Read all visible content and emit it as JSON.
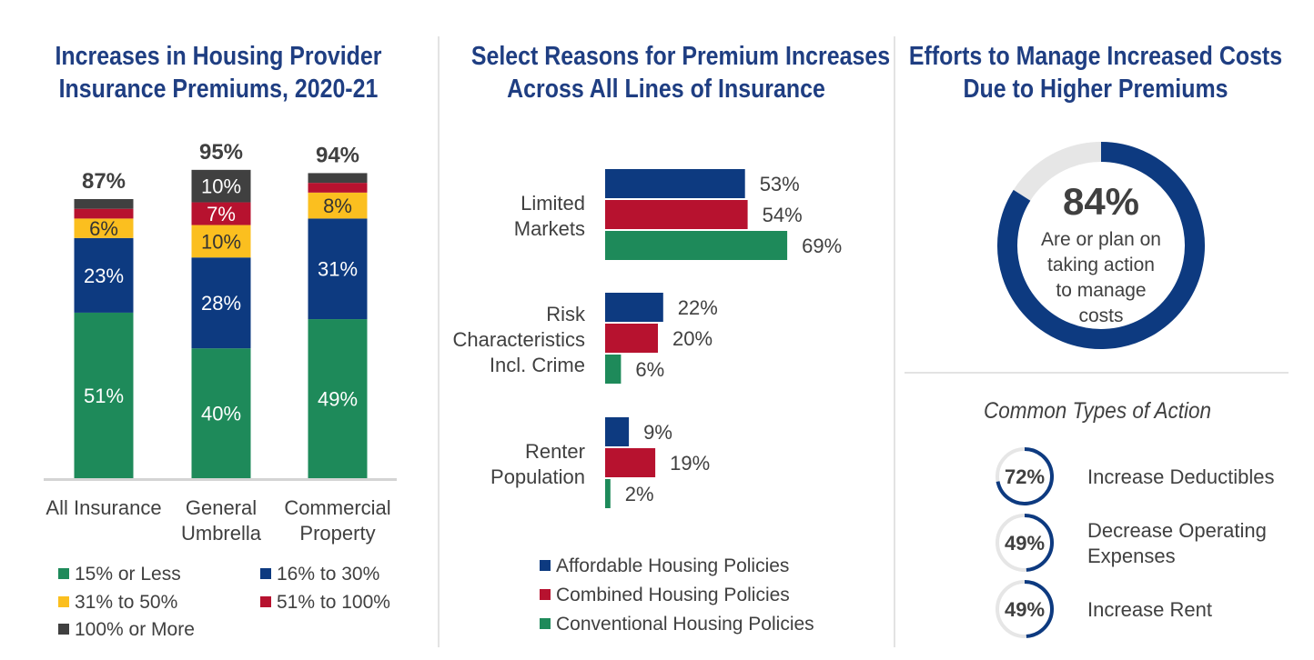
{
  "colors": {
    "green": "#1e8a5a",
    "blue": "#0d3a80",
    "yellow": "#fbbf1f",
    "red": "#b7122f",
    "dark": "#404040",
    "title": "#1f3e82",
    "ring_track": "#e6e6e6"
  },
  "panel1": {
    "title_line1": "Increases in Housing Provider",
    "title_line2": "Insurance Premiums, 2020-21"
  },
  "panel2": {
    "title_line1": "Select Reasons for Premium Increases",
    "title_line2": "Across All Lines of Insurance"
  },
  "panel3": {
    "title_line1": "Efforts to Manage Increased Costs",
    "title_line2": "Due to Higher Premiums",
    "main_value": "84%",
    "main_fraction": 0.84,
    "main_caption": [
      "Are or plan on",
      "taking action",
      "to manage",
      "costs"
    ],
    "subhead": "Common Types of Action",
    "actions": [
      {
        "value": "72%",
        "fraction": 0.72,
        "label": [
          "Increase Deductibles"
        ]
      },
      {
        "value": "49%",
        "fraction": 0.49,
        "label": [
          "Decrease Operating",
          "Expenses"
        ]
      },
      {
        "value": "49%",
        "fraction": 0.49,
        "label": [
          "Increase Rent"
        ]
      }
    ]
  },
  "chart_data": [
    {
      "type": "bar",
      "stacked": true,
      "title": "Increases in Housing Provider Insurance Premiums, 2020-21",
      "categories": [
        [
          "All Insurance"
        ],
        [
          "General",
          "Umbrella"
        ],
        [
          "Commercial",
          "Property"
        ]
      ],
      "totals": [
        "87%",
        "95%",
        "94%"
      ],
      "ylim": [
        0,
        100
      ],
      "series": [
        {
          "name": "15% or Less",
          "color": "#1e8a5a",
          "values": [
            51,
            40,
            49
          ],
          "labels": [
            "51%",
            "40%",
            "49%"
          ]
        },
        {
          "name": "16% to 30%",
          "color": "#0d3a80",
          "values": [
            23,
            28,
            31
          ],
          "labels": [
            "23%",
            "28%",
            "31%"
          ]
        },
        {
          "name": "31% to 50%",
          "color": "#fbbf1f",
          "values": [
            6,
            10,
            8
          ],
          "labels": [
            "6%",
            "10%",
            "8%"
          ]
        },
        {
          "name": "51% to 100%",
          "color": "#b7122f",
          "values": [
            3,
            7,
            3
          ],
          "labels": [
            "",
            "7%",
            ""
          ]
        },
        {
          "name": "100% or More",
          "color": "#404040",
          "values": [
            3,
            10,
            3
          ],
          "labels": [
            "",
            "10%",
            ""
          ]
        }
      ],
      "legend_order": [
        "15% or Less",
        "16% to 30%",
        "31% to 50%",
        "51% to 100%",
        "100% or More"
      ]
    },
    {
      "type": "bar",
      "orientation": "horizontal",
      "title": "Select Reasons for Premium Increases Across All Lines of Insurance",
      "categories": [
        [
          "Limited",
          "Markets"
        ],
        [
          "Risk",
          "Characteristics",
          "Incl. Crime"
        ],
        [
          "Renter",
          "Population"
        ]
      ],
      "xlim": [
        0,
        100
      ],
      "series": [
        {
          "name": "Affordable Housing Policies",
          "color": "#0d3a80",
          "values": [
            53,
            22,
            9
          ]
        },
        {
          "name": "Combined Housing Policies",
          "color": "#b7122f",
          "values": [
            54,
            20,
            19
          ]
        },
        {
          "name": "Conventional Housing Policies",
          "color": "#1e8a5a",
          "values": [
            69,
            6,
            2
          ]
        }
      ]
    }
  ]
}
